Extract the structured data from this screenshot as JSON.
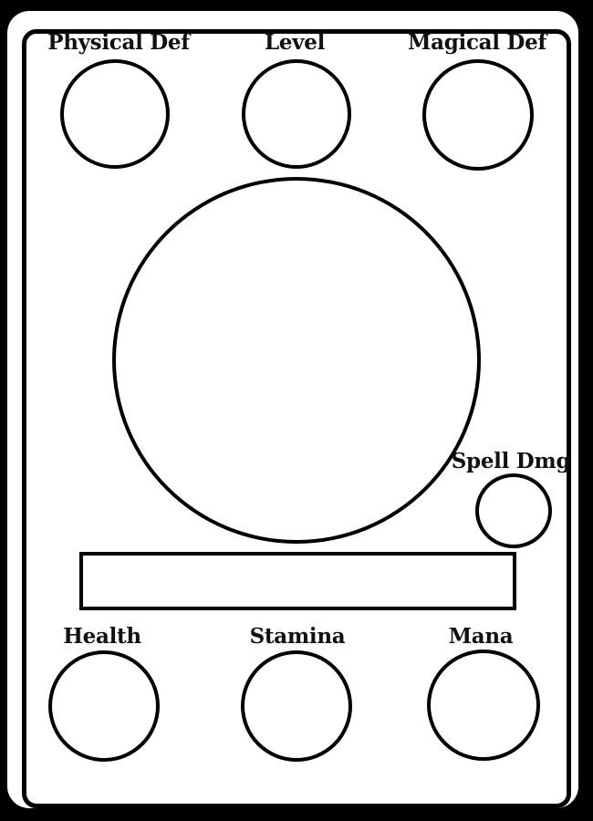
{
  "card": {
    "stats_top": {
      "physical_def": {
        "label": "Physical Def",
        "value": ""
      },
      "level": {
        "label": "Level",
        "value": ""
      },
      "magical_def": {
        "label": "Magical Def",
        "value": ""
      }
    },
    "portrait": {
      "value": ""
    },
    "spell_dmg": {
      "label": "Spell Dmg",
      "value": ""
    },
    "name_bar": {
      "value": ""
    },
    "stats_bottom": {
      "health": {
        "label": "Health",
        "value": ""
      },
      "stamina": {
        "label": "Stamina",
        "value": ""
      },
      "mana": {
        "label": "Mana",
        "value": ""
      }
    }
  }
}
